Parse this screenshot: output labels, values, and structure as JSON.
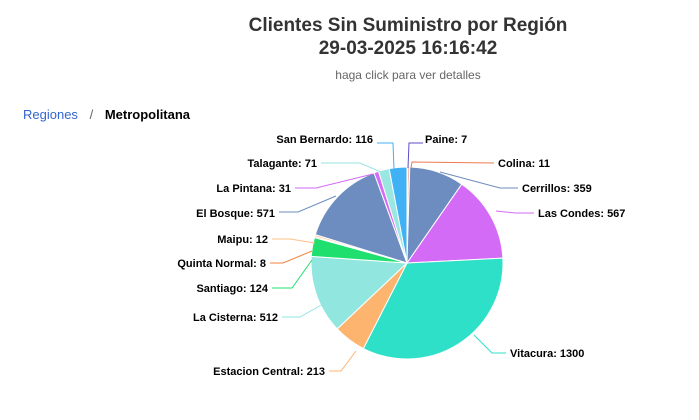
{
  "chart_data": {
    "type": "pie",
    "title_line1": "Clientes Sin Suministro por Región",
    "title_line2": "29-03-2025 16:16:42",
    "subtitle": "haga click para ver detalles",
    "slices": [
      {
        "name": "Paine",
        "value": 7,
        "label": "Paine: 7",
        "color": "#5b4ec9"
      },
      {
        "name": "Colina",
        "value": 11,
        "label": "Colina: 11",
        "color": "#ee7a52"
      },
      {
        "name": "Cerrillos",
        "value": 359,
        "label": "Cerrillos: 359",
        "color": "#6d8cbf"
      },
      {
        "name": "Las Condes",
        "value": 567,
        "label": "Las Condes: 567",
        "color": "#d36bf6"
      },
      {
        "name": "Vitacura",
        "value": 1300,
        "label": "Vitacura: 1300",
        "color": "#2ee0c8"
      },
      {
        "name": "Estacion Central",
        "value": 213,
        "label": "Estacion Central: 213",
        "color": "#fdb46f"
      },
      {
        "name": "La Cisterna",
        "value": 512,
        "label": "La Cisterna: 512",
        "color": "#92e6e0"
      },
      {
        "name": "Santiago",
        "value": 124,
        "label": "Santiago: 124",
        "color": "#1fe06f"
      },
      {
        "name": "Quinta Normal",
        "value": 8,
        "label": "Quinta Normal: 8",
        "color": "#f5813d"
      },
      {
        "name": "Maipu",
        "value": 12,
        "label": "Maipu: 12",
        "color": "#fdc08a"
      },
      {
        "name": "El Bosque",
        "value": 571,
        "label": "El Bosque: 571",
        "color": "#6d8cbf"
      },
      {
        "name": "La Pintana",
        "value": 31,
        "label": "La Pintana: 31",
        "color": "#d36bf6"
      },
      {
        "name": "Talagante",
        "value": 71,
        "label": "Talagante: 71",
        "color": "#9ae6e0"
      },
      {
        "name": "San Bernardo",
        "value": 116,
        "label": "San Bernardo: 116",
        "color": "#3fb1f4"
      }
    ]
  },
  "breadcrumb": {
    "root": "Regiones",
    "separator": "/",
    "current": "Metropolitana"
  }
}
